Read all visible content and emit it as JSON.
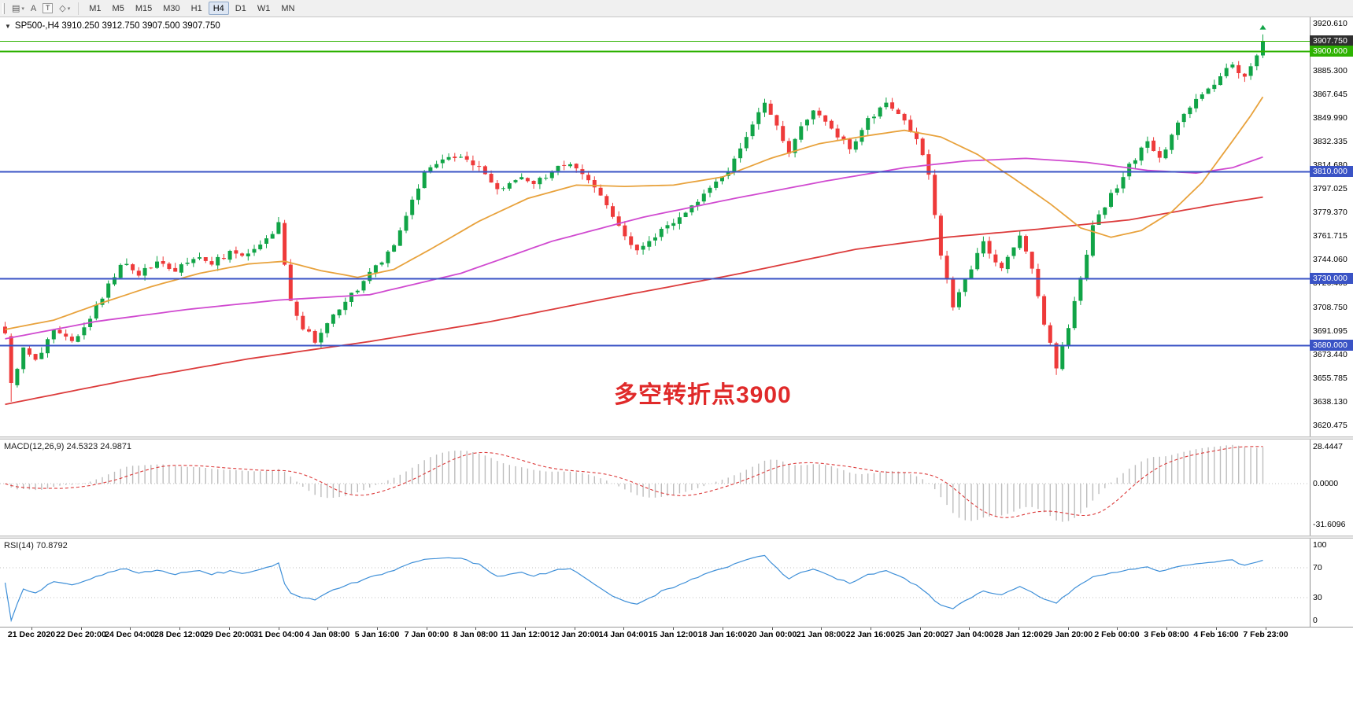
{
  "colors": {
    "toolbar_bg": "#f0f0f0",
    "chart_bg": "#ffffff",
    "up_candle": "#11a447",
    "down_candle": "#ee3a3a",
    "ma_fast_orange": "#e8a23c",
    "ma_mid_magenta": "#d04ad0",
    "ma_slow_red": "#dc3b3b",
    "hline_green": "#2db200",
    "hline_blue": "#3a53c5",
    "current_price_label_bg": "#2f2f2f",
    "macd_histogram": "#bdbdbd",
    "macd_signal": "#dc3b3b",
    "rsi_line": "#3e8fd8",
    "annotation_red": "#e02a2a",
    "level_dotted": "#c0c0c0",
    "axis_text": "#000000"
  },
  "toolbar": {
    "icons": [
      {
        "name": "chart-windows-icon",
        "glyph": "▤",
        "caret": true,
        "boxed": false
      },
      {
        "name": "text-label-icon",
        "glyph": "A",
        "caret": false,
        "boxed": false
      },
      {
        "name": "text-tool-icon",
        "glyph": "T",
        "caret": false,
        "boxed": true
      },
      {
        "name": "drawing-shapes-icon",
        "glyph": "◇",
        "caret": true,
        "boxed": false
      }
    ],
    "timeframes": [
      "M1",
      "M5",
      "M15",
      "M30",
      "H1",
      "H4",
      "D1",
      "W1",
      "MN"
    ],
    "selected_timeframe": "H4"
  },
  "main_chart": {
    "symbol_header": "SP500-,H4 3910.250 3912.750 3907.500 3907.750",
    "annotation": "多空转折点3900",
    "price_axis": {
      "ticks": [
        "3920.610",
        "3885.300",
        "3867.645",
        "3849.990",
        "3832.335",
        "3814.680",
        "3797.025",
        "3779.370",
        "3761.715",
        "3744.060",
        "3726.405",
        "3708.750",
        "3691.095",
        "3673.440",
        "3655.785",
        "3638.130",
        "3620.475"
      ],
      "special_labels": [
        {
          "text": "3907.750",
          "price": 3907.75,
          "style": "current"
        },
        {
          "text": "3900.000",
          "price": 3900.0,
          "style": "green"
        },
        {
          "text": "3810.000",
          "price": 3810.0,
          "style": "blue"
        },
        {
          "text": "3730.000",
          "price": 3730.0,
          "style": "blue"
        },
        {
          "text": "3680.000",
          "price": 3680.0,
          "style": "blue"
        }
      ]
    },
    "horizontal_lines": [
      {
        "price": 3907.75,
        "color": "green",
        "width": 1
      },
      {
        "price": 3900.0,
        "color": "green",
        "width": 2
      },
      {
        "price": 3810.0,
        "color": "blue",
        "width": 2
      },
      {
        "price": 3730.0,
        "color": "blue",
        "width": 2
      },
      {
        "price": 3680.0,
        "color": "blue",
        "width": 2
      }
    ],
    "markers": [
      {
        "name": "buy-arrow",
        "candle_index": 207,
        "price": 3917.5,
        "color": "green"
      }
    ]
  },
  "chart_data": {
    "type": "candlestick",
    "symbol": "SP500-",
    "timeframe": "H4",
    "current_bar": {
      "open": 3910.25,
      "high": 3912.75,
      "low": 3907.5,
      "close": 3907.75
    },
    "axis_range": {
      "top": 3925.5,
      "bottom": 3612.0
    },
    "num_candles": 208,
    "support_resistance_levels": [
      3900.0,
      3810.0,
      3730.0,
      3680.0
    ],
    "close_anchors": [
      [
        0,
        3690
      ],
      [
        1,
        3650
      ],
      [
        3,
        3678
      ],
      [
        5,
        3668
      ],
      [
        8,
        3690
      ],
      [
        11,
        3683
      ],
      [
        14,
        3702
      ],
      [
        17,
        3725
      ],
      [
        19,
        3742
      ],
      [
        22,
        3733
      ],
      [
        25,
        3742
      ],
      [
        28,
        3736
      ],
      [
        31,
        3745
      ],
      [
        34,
        3741
      ],
      [
        37,
        3749
      ],
      [
        40,
        3747
      ],
      [
        43,
        3758
      ],
      [
        45,
        3772
      ],
      [
        46,
        3738
      ],
      [
        47,
        3715
      ],
      [
        49,
        3692
      ],
      [
        51,
        3684
      ],
      [
        54,
        3703
      ],
      [
        57,
        3717
      ],
      [
        60,
        3733
      ],
      [
        63,
        3748
      ],
      [
        65,
        3766
      ],
      [
        67,
        3790
      ],
      [
        69,
        3808
      ],
      [
        72,
        3817
      ],
      [
        75,
        3822
      ],
      [
        78,
        3812
      ],
      [
        81,
        3796
      ],
      [
        84,
        3806
      ],
      [
        87,
        3799
      ],
      [
        90,
        3811
      ],
      [
        93,
        3817
      ],
      [
        96,
        3806
      ],
      [
        99,
        3787
      ],
      [
        101,
        3768
      ],
      [
        104,
        3752
      ],
      [
        107,
        3763
      ],
      [
        110,
        3774
      ],
      [
        113,
        3783
      ],
      [
        116,
        3796
      ],
      [
        119,
        3812
      ],
      [
        122,
        3838
      ],
      [
        125,
        3860
      ],
      [
        127,
        3846
      ],
      [
        129,
        3824
      ],
      [
        131,
        3842
      ],
      [
        133,
        3855
      ],
      [
        136,
        3841
      ],
      [
        139,
        3828
      ],
      [
        142,
        3849
      ],
      [
        145,
        3862
      ],
      [
        148,
        3850
      ],
      [
        150,
        3832
      ],
      [
        152,
        3808
      ],
      [
        154,
        3748
      ],
      [
        156,
        3708
      ],
      [
        158,
        3731
      ],
      [
        161,
        3756
      ],
      [
        164,
        3738
      ],
      [
        167,
        3760
      ],
      [
        169,
        3738
      ],
      [
        171,
        3698
      ],
      [
        173,
        3663
      ],
      [
        175,
        3692
      ],
      [
        177,
        3732
      ],
      [
        179,
        3768
      ],
      [
        182,
        3792
      ],
      [
        185,
        3814
      ],
      [
        188,
        3834
      ],
      [
        190,
        3820
      ],
      [
        193,
        3846
      ],
      [
        196,
        3863
      ],
      [
        199,
        3877
      ],
      [
        202,
        3890
      ],
      [
        204,
        3881
      ],
      [
        206,
        3897
      ],
      [
        207,
        3908
      ]
    ],
    "ma_fast_anchors": [
      [
        0,
        3692
      ],
      [
        8,
        3699
      ],
      [
        16,
        3712
      ],
      [
        24,
        3724
      ],
      [
        32,
        3734
      ],
      [
        40,
        3741
      ],
      [
        46,
        3743
      ],
      [
        52,
        3736
      ],
      [
        58,
        3731
      ],
      [
        64,
        3737
      ],
      [
        70,
        3752
      ],
      [
        78,
        3773
      ],
      [
        86,
        3790
      ],
      [
        94,
        3800
      ],
      [
        102,
        3799
      ],
      [
        110,
        3800
      ],
      [
        118,
        3806
      ],
      [
        126,
        3820
      ],
      [
        134,
        3831
      ],
      [
        142,
        3837
      ],
      [
        148,
        3841
      ],
      [
        154,
        3836
      ],
      [
        160,
        3823
      ],
      [
        166,
        3805
      ],
      [
        172,
        3786
      ],
      [
        177,
        3768
      ],
      [
        182,
        3761
      ],
      [
        187,
        3766
      ],
      [
        192,
        3780
      ],
      [
        197,
        3802
      ],
      [
        202,
        3833
      ],
      [
        205,
        3852
      ],
      [
        207,
        3866
      ]
    ],
    "ma_mid_anchors": [
      [
        0,
        3685
      ],
      [
        15,
        3698
      ],
      [
        30,
        3707
      ],
      [
        45,
        3714
      ],
      [
        60,
        3718
      ],
      [
        75,
        3734
      ],
      [
        90,
        3758
      ],
      [
        105,
        3776
      ],
      [
        120,
        3790
      ],
      [
        135,
        3803
      ],
      [
        148,
        3813
      ],
      [
        158,
        3818
      ],
      [
        168,
        3820
      ],
      [
        178,
        3817
      ],
      [
        188,
        3811
      ],
      [
        196,
        3809
      ],
      [
        202,
        3813
      ],
      [
        207,
        3821
      ]
    ],
    "ma_slow_anchors": [
      [
        0,
        3636
      ],
      [
        20,
        3654
      ],
      [
        40,
        3670
      ],
      [
        60,
        3683
      ],
      [
        80,
        3698
      ],
      [
        100,
        3716
      ],
      [
        120,
        3733
      ],
      [
        140,
        3752
      ],
      [
        155,
        3761
      ],
      [
        170,
        3767
      ],
      [
        185,
        3774
      ],
      [
        200,
        3786
      ],
      [
        207,
        3791
      ]
    ]
  },
  "macd_panel": {
    "label": "MACD(12,26,9) 24.5323 24.9871",
    "fast": 12,
    "slow": 26,
    "signal": 9,
    "value_main": 24.5323,
    "value_signal": 24.9871,
    "axis_labels": [
      "28.4447",
      "0.0000",
      "-31.6096"
    ],
    "scale_max": 34,
    "scale_min": -40
  },
  "rsi_panel": {
    "label": "RSI(14) 70.8792",
    "period": 14,
    "value": 70.8792,
    "axis_labels": [
      "100",
      "70",
      "30",
      "0"
    ],
    "levels": [
      70,
      30
    ]
  },
  "time_axis": {
    "labels": [
      "21 Dec 2020",
      "22 Dec 20:00",
      "24 Dec 04:00",
      "28 Dec 12:00",
      "29 Dec 20:00",
      "31 Dec 04:00",
      "4 Jan 08:00",
      "5 Jan 16:00",
      "7 Jan 00:00",
      "8 Jan 08:00",
      "11 Jan 12:00",
      "12 Jan 20:00",
      "14 Jan 04:00",
      "15 Jan 12:00",
      "18 Jan 16:00",
      "20 Jan 00:00",
      "21 Jan 08:00",
      "22 Jan 16:00",
      "25 Jan 20:00",
      "27 Jan 04:00",
      "28 Jan 12:00",
      "29 Jan 20:00",
      "2 Feb 00:00",
      "3 Feb 08:00",
      "4 Feb 16:00",
      "7 Feb 23:00"
    ]
  }
}
